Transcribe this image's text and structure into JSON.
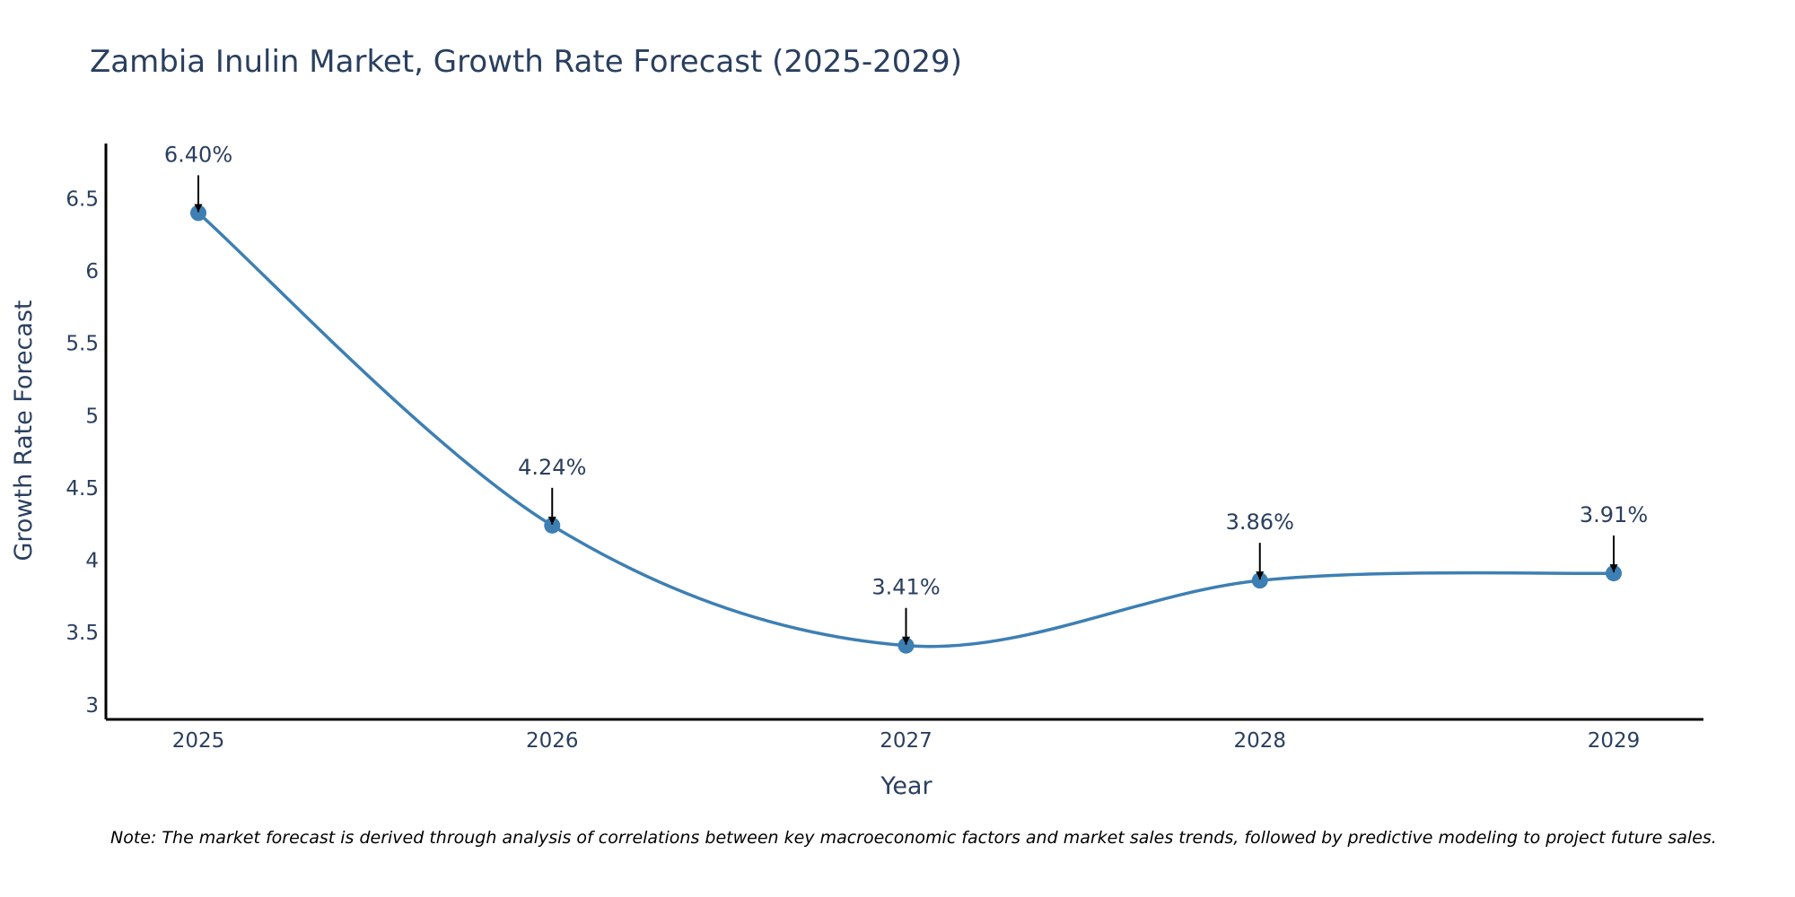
{
  "chart_data": {
    "type": "line",
    "title": "Zambia Inulin Market, Growth Rate Forecast (2025-2029)",
    "xlabel": "Year",
    "ylabel": "Growth Rate Forecast",
    "categories": [
      "2025",
      "2026",
      "2027",
      "2028",
      "2029"
    ],
    "series": [
      {
        "name": "Growth Rate Forecast",
        "values": [
          6.4,
          4.24,
          3.41,
          3.86,
          3.91
        ],
        "color": "#3d7fb3"
      }
    ],
    "data_labels": [
      "6.40%",
      "4.24%",
      "3.41%",
      "3.86%",
      "3.91%"
    ],
    "ylim": [
      2.9,
      6.88
    ],
    "yticks": [
      3,
      3.5,
      4,
      4.5,
      5,
      5.5,
      6,
      6.5
    ],
    "ytick_labels": [
      "3",
      "3.5",
      "4",
      "4.5",
      "5",
      "5.5",
      "6",
      "6.5"
    ],
    "line_shape": "spline",
    "grid": false,
    "note": "Note: The market forecast is derived through analysis of correlations between key macroeconomic factors and market sales trends, followed by predictive modeling to project future sales."
  },
  "colors": {
    "line": "#3d7fb3",
    "marker": "#3d7fb3",
    "text": "#2a3f5f",
    "axis": "#000000",
    "arrow": "#000000"
  }
}
